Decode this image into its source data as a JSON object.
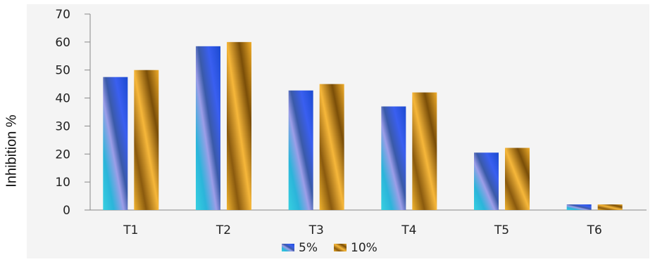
{
  "chart_data": {
    "type": "bar",
    "ylabel": "Inhibition %",
    "xlabel": "",
    "title": "",
    "categories": [
      "T1",
      "T2",
      "T3",
      "T4",
      "T5",
      "T6"
    ],
    "series": [
      {
        "name": "5%",
        "values": [
          47.5,
          58.5,
          42.7,
          37.0,
          20.5,
          2.0
        ],
        "color": "#3aa0d8"
      },
      {
        "name": "10%",
        "values": [
          50.0,
          60.0,
          45.0,
          42.0,
          22.2,
          2.0
        ],
        "color": "#d08a18"
      }
    ],
    "ylim": [
      0,
      70
    ],
    "yticks": [
      "0",
      "10",
      "20",
      "30",
      "40",
      "50",
      "60",
      "70"
    ],
    "legend_position": "bottom",
    "grid": false
  }
}
